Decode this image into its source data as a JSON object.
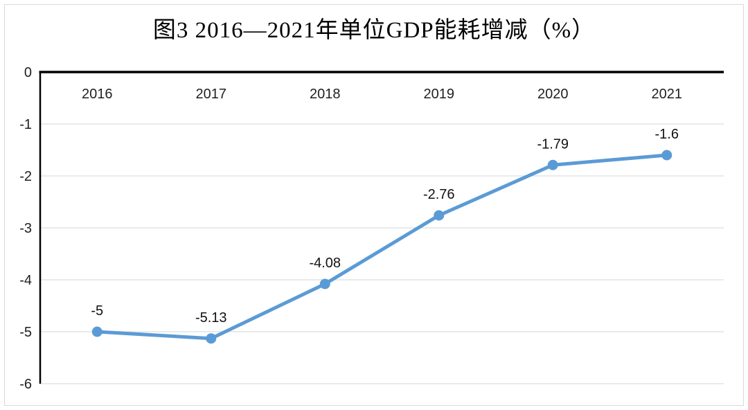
{
  "figure": {
    "title": "图3 2016—2021年单位GDP能耗增减（%）"
  },
  "chart_data": {
    "type": "line",
    "title": "图3 2016—2021年单位GDP能耗增减（%）",
    "categories": [
      "2016",
      "2017",
      "2018",
      "2019",
      "2020",
      "2021"
    ],
    "values": [
      -5,
      -5.13,
      -4.08,
      -2.76,
      -1.79,
      -1.6
    ],
    "point_labels": [
      "-5",
      "-5.13",
      "-4.08",
      "-2.76",
      "-1.79",
      "-1.6"
    ],
    "xlabel": "",
    "ylabel": "",
    "ylim": [
      -6,
      0
    ],
    "yticks": [
      0,
      -1,
      -2,
      -3,
      -4,
      -5,
      -6
    ],
    "grid": true,
    "legend": "none",
    "x_labels_position": "inside-top",
    "data_labels_position": "above-points",
    "marker": "circle",
    "line_color": "#5B9BD5",
    "axis_color": "#000000",
    "gridline_color": "#EAEAEA",
    "frame_color": "#D9D9D9"
  }
}
